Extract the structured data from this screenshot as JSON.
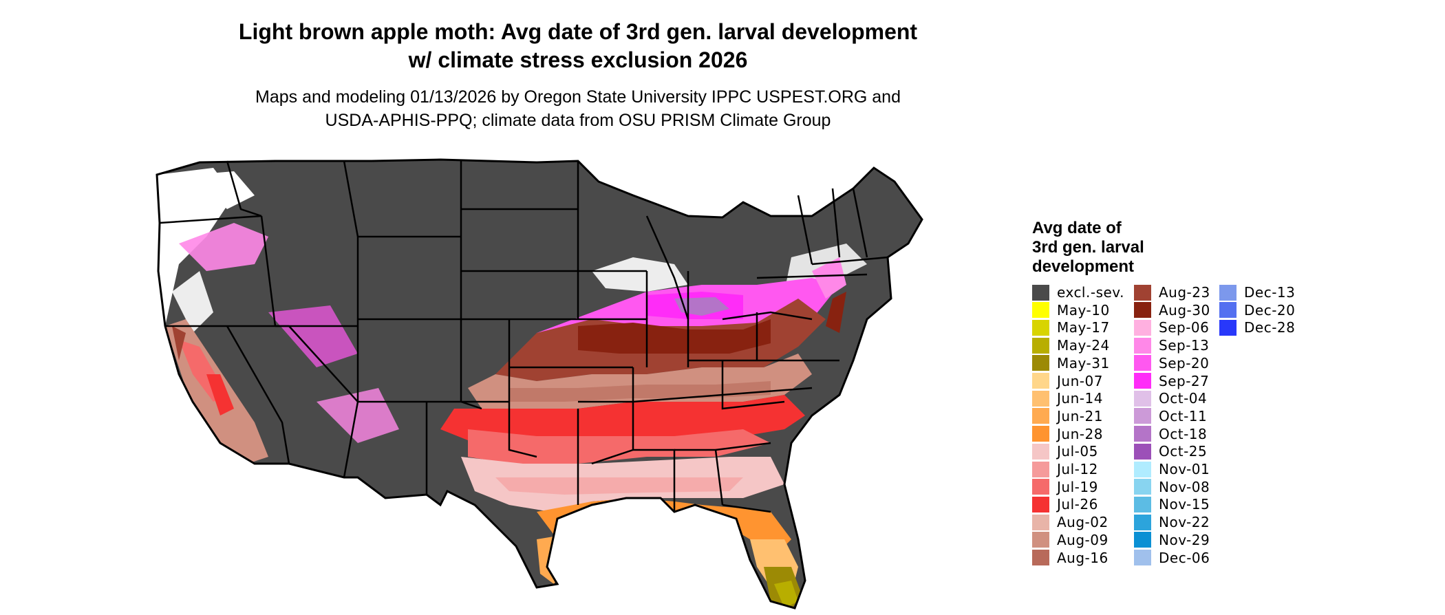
{
  "title_line1": "Light brown apple moth: Avg date of 3rd gen. larval development",
  "title_line2": "w/ climate stress exclusion 2026",
  "subtitle_line1": "Maps and modeling 01/13/2026 by Oregon State University IPPC USPEST.ORG and",
  "subtitle_line2": "USDA-APHIS-PPQ; climate data from OSU PRISM Climate Group",
  "map": {
    "description_colors": {
      "excluded": "#4a4a4a",
      "no_data": "#ffffff",
      "state_border": "#000000"
    }
  },
  "legend": {
    "title_line1": "Avg date of",
    "title_line2": "3rd gen. larval",
    "title_line3": "development",
    "items": [
      {
        "label": "excl.-sev.",
        "color": "#4a4a4a"
      },
      {
        "label": "May-10",
        "color": "#ffff00"
      },
      {
        "label": "May-17",
        "color": "#d8d400"
      },
      {
        "label": "May-24",
        "color": "#b8ae00"
      },
      {
        "label": "May-31",
        "color": "#9c8a05"
      },
      {
        "label": "Jun-07",
        "color": "#ffd68a"
      },
      {
        "label": "Jun-14",
        "color": "#ffc070"
      },
      {
        "label": "Jun-21",
        "color": "#ffaa50"
      },
      {
        "label": "Jun-28",
        "color": "#ff9430"
      },
      {
        "label": "Jul-05",
        "color": "#f5c6c6"
      },
      {
        "label": "Jul-12",
        "color": "#f59a9a"
      },
      {
        "label": "Jul-19",
        "color": "#f56a6a"
      },
      {
        "label": "Jul-26",
        "color": "#f53232"
      },
      {
        "label": "Aug-02",
        "color": "#e8b4a8"
      },
      {
        "label": "Aug-09",
        "color": "#d09080"
      },
      {
        "label": "Aug-16",
        "color": "#b86a5a"
      },
      {
        "label": "Aug-23",
        "color": "#a04232"
      },
      {
        "label": "Aug-30",
        "color": "#882210"
      },
      {
        "label": "Sep-06",
        "color": "#ffb0e0"
      },
      {
        "label": "Sep-13",
        "color": "#ff88e8"
      },
      {
        "label": "Sep-20",
        "color": "#ff58f0"
      },
      {
        "label": "Sep-27",
        "color": "#ff2cf8"
      },
      {
        "label": "Oct-04",
        "color": "#e0c0e8"
      },
      {
        "label": "Oct-11",
        "color": "#cc9ad8"
      },
      {
        "label": "Oct-18",
        "color": "#b474c8"
      },
      {
        "label": "Oct-25",
        "color": "#9c50b8"
      },
      {
        "label": "Nov-01",
        "color": "#b0ecff"
      },
      {
        "label": "Nov-08",
        "color": "#88d4f0"
      },
      {
        "label": "Nov-15",
        "color": "#5cbce4"
      },
      {
        "label": "Nov-22",
        "color": "#2ca4dc"
      },
      {
        "label": "Nov-29",
        "color": "#0a90d4"
      },
      {
        "label": "Dec-06",
        "color": "#a0c0ec"
      },
      {
        "label": "Dec-13",
        "color": "#7c98ec"
      },
      {
        "label": "Dec-20",
        "color": "#5470f0"
      },
      {
        "label": "Dec-28",
        "color": "#2838fa"
      }
    ]
  }
}
